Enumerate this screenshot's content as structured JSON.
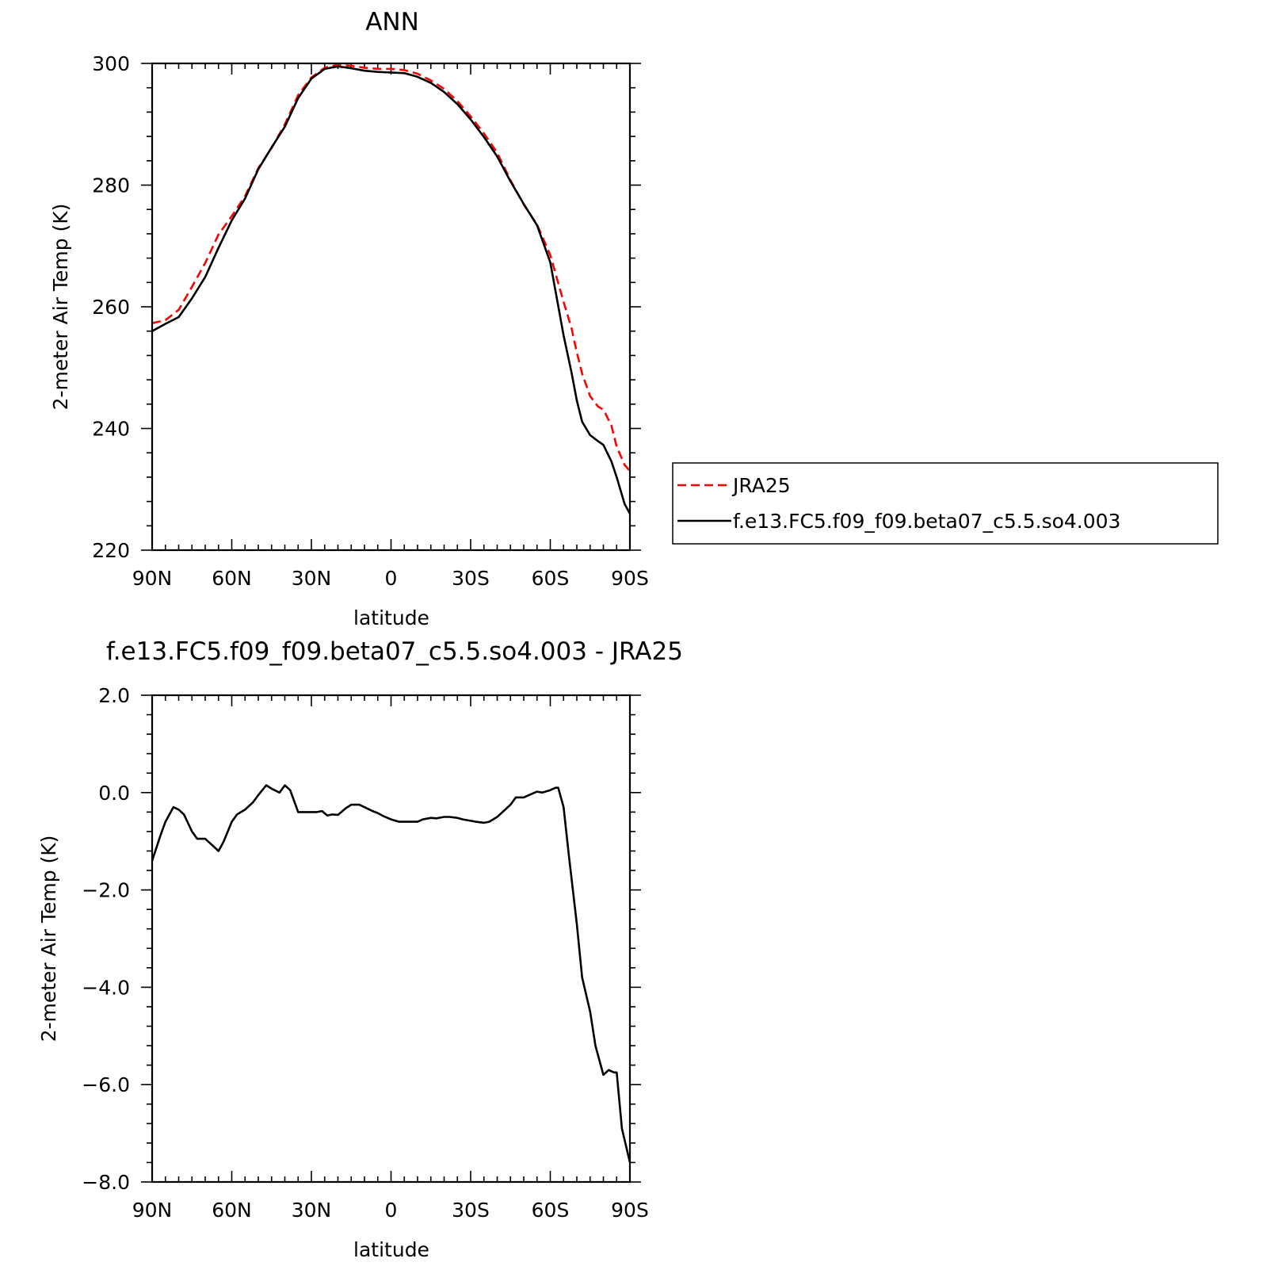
{
  "chart_data": [
    {
      "type": "line",
      "title": "ANN",
      "xlabel": "latitude",
      "ylabel": "2-meter Air Temp (K)",
      "xlim": [
        90,
        -90
      ],
      "ylim": [
        220,
        300
      ],
      "xticks": [
        90,
        60,
        30,
        0,
        -30,
        -60,
        -90
      ],
      "xtick_labels": [
        "90N",
        "60N",
        "30N",
        "0",
        "30S",
        "60S",
        "90S"
      ],
      "yticks": [
        220,
        240,
        260,
        280,
        300
      ],
      "ytick_labels": [
        "220",
        "240",
        "260",
        "280",
        "300"
      ],
      "legend_position": "right",
      "series": [
        {
          "name": "JRA25",
          "color": "#ff0000",
          "style": "dashed",
          "x": [
            90,
            85,
            80,
            75,
            70,
            65,
            60,
            55,
            50,
            45,
            40,
            35,
            30,
            25,
            20,
            15,
            10,
            5,
            0,
            -5,
            -10,
            -15,
            -20,
            -25,
            -30,
            -35,
            -40,
            -45,
            -50,
            -55,
            -60,
            -65,
            -68,
            -70,
            -72,
            -75,
            -78,
            -80,
            -83,
            -85,
            -88,
            -90
          ],
          "y": [
            257.3,
            257.8,
            259.5,
            263.3,
            267.2,
            271.9,
            274.9,
            278.2,
            282.8,
            286.1,
            290.0,
            294.8,
            297.7,
            299.3,
            299.8,
            299.6,
            299.3,
            299.1,
            299.1,
            298.9,
            298.3,
            297.2,
            295.8,
            293.8,
            291.3,
            288.5,
            285.3,
            280.8,
            276.8,
            273.5,
            268.5,
            260.8,
            256.5,
            252.5,
            249.0,
            245.3,
            243.6,
            243.1,
            240.5,
            237.0,
            234.0,
            233.0
          ]
        },
        {
          "name": "f.e13.FC5.f09_f09.beta07_c5.5.so4.003",
          "color": "#000000",
          "style": "solid",
          "x": [
            90,
            85,
            80,
            75,
            70,
            65,
            60,
            55,
            50,
            45,
            40,
            35,
            30,
            25,
            20,
            15,
            10,
            5,
            0,
            -5,
            -10,
            -15,
            -20,
            -25,
            -30,
            -35,
            -40,
            -45,
            -50,
            -55,
            -60,
            -65,
            -68,
            -70,
            -72,
            -75,
            -78,
            -80,
            -83,
            -85,
            -88,
            -90
          ],
          "y": [
            256.0,
            257.2,
            258.3,
            261.4,
            264.9,
            269.7,
            274.2,
            277.8,
            282.6,
            286.2,
            289.6,
            294.3,
            297.5,
            299.1,
            299.5,
            299.2,
            298.8,
            298.6,
            298.5,
            298.4,
            297.8,
            296.8,
            295.3,
            293.3,
            290.8,
            287.9,
            284.7,
            280.6,
            276.9,
            273.4,
            267.3,
            255.3,
            249.2,
            244.6,
            241.1,
            238.9,
            237.9,
            237.3,
            234.6,
            232.0,
            227.6,
            226.0
          ]
        }
      ]
    },
    {
      "type": "line",
      "title": "f.e13.FC5.f09_f09.beta07_c5.5.so4.003 - JRA25",
      "xlabel": "latitude",
      "ylabel": "2-meter Air Temp (K)",
      "xlim": [
        90,
        -90
      ],
      "ylim": [
        -8.0,
        2.0
      ],
      "xticks": [
        90,
        60,
        30,
        0,
        -30,
        -60,
        -90
      ],
      "xtick_labels": [
        "90N",
        "60N",
        "30N",
        "0",
        "30S",
        "60S",
        "90S"
      ],
      "yticks": [
        -8.0,
        -6.0,
        -4.0,
        -2.0,
        0.0,
        2.0
      ],
      "ytick_labels": [
        "-8.0",
        "-6.0",
        "-4.0",
        "-2.0",
        "0.0",
        "2.0"
      ],
      "series": [
        {
          "color": "#000000",
          "style": "solid",
          "x": [
            90,
            87,
            85,
            82,
            80,
            78,
            75,
            73,
            70,
            67,
            65,
            63,
            60,
            58,
            55,
            52,
            50,
            47,
            45,
            42,
            40,
            38,
            35,
            32,
            30,
            28,
            26,
            24,
            22,
            20,
            17,
            15,
            12,
            10,
            7,
            5,
            3,
            0,
            -3,
            -5,
            -7,
            -10,
            -12,
            -15,
            -17,
            -20,
            -22,
            -25,
            -27,
            -30,
            -32,
            -35,
            -37,
            -40,
            -42,
            -45,
            -47,
            -50,
            -52,
            -55,
            -57,
            -60,
            -62,
            -63,
            -65,
            -67,
            -70,
            -72,
            -75,
            -77,
            -80,
            -82,
            -84,
            -85,
            -87,
            -90
          ],
          "y": [
            -1.4,
            -0.9,
            -0.6,
            -0.3,
            -0.35,
            -0.45,
            -0.8,
            -0.95,
            -0.95,
            -1.1,
            -1.2,
            -1.0,
            -0.6,
            -0.45,
            -0.35,
            -0.2,
            -0.05,
            0.15,
            0.08,
            0.0,
            0.15,
            0.05,
            -0.4,
            -0.4,
            -0.4,
            -0.4,
            -0.38,
            -0.47,
            -0.45,
            -0.46,
            -0.32,
            -0.25,
            -0.25,
            -0.3,
            -0.38,
            -0.42,
            -0.48,
            -0.55,
            -0.6,
            -0.6,
            -0.6,
            -0.6,
            -0.55,
            -0.52,
            -0.53,
            -0.5,
            -0.5,
            -0.52,
            -0.55,
            -0.58,
            -0.6,
            -0.62,
            -0.6,
            -0.5,
            -0.4,
            -0.25,
            -0.1,
            -0.1,
            -0.05,
            0.02,
            0.0,
            0.05,
            0.1,
            0.1,
            -0.3,
            -1.3,
            -2.7,
            -3.8,
            -4.5,
            -5.2,
            -5.8,
            -5.7,
            -5.75,
            -5.75,
            -6.9,
            -7.6
          ]
        }
      ]
    }
  ]
}
